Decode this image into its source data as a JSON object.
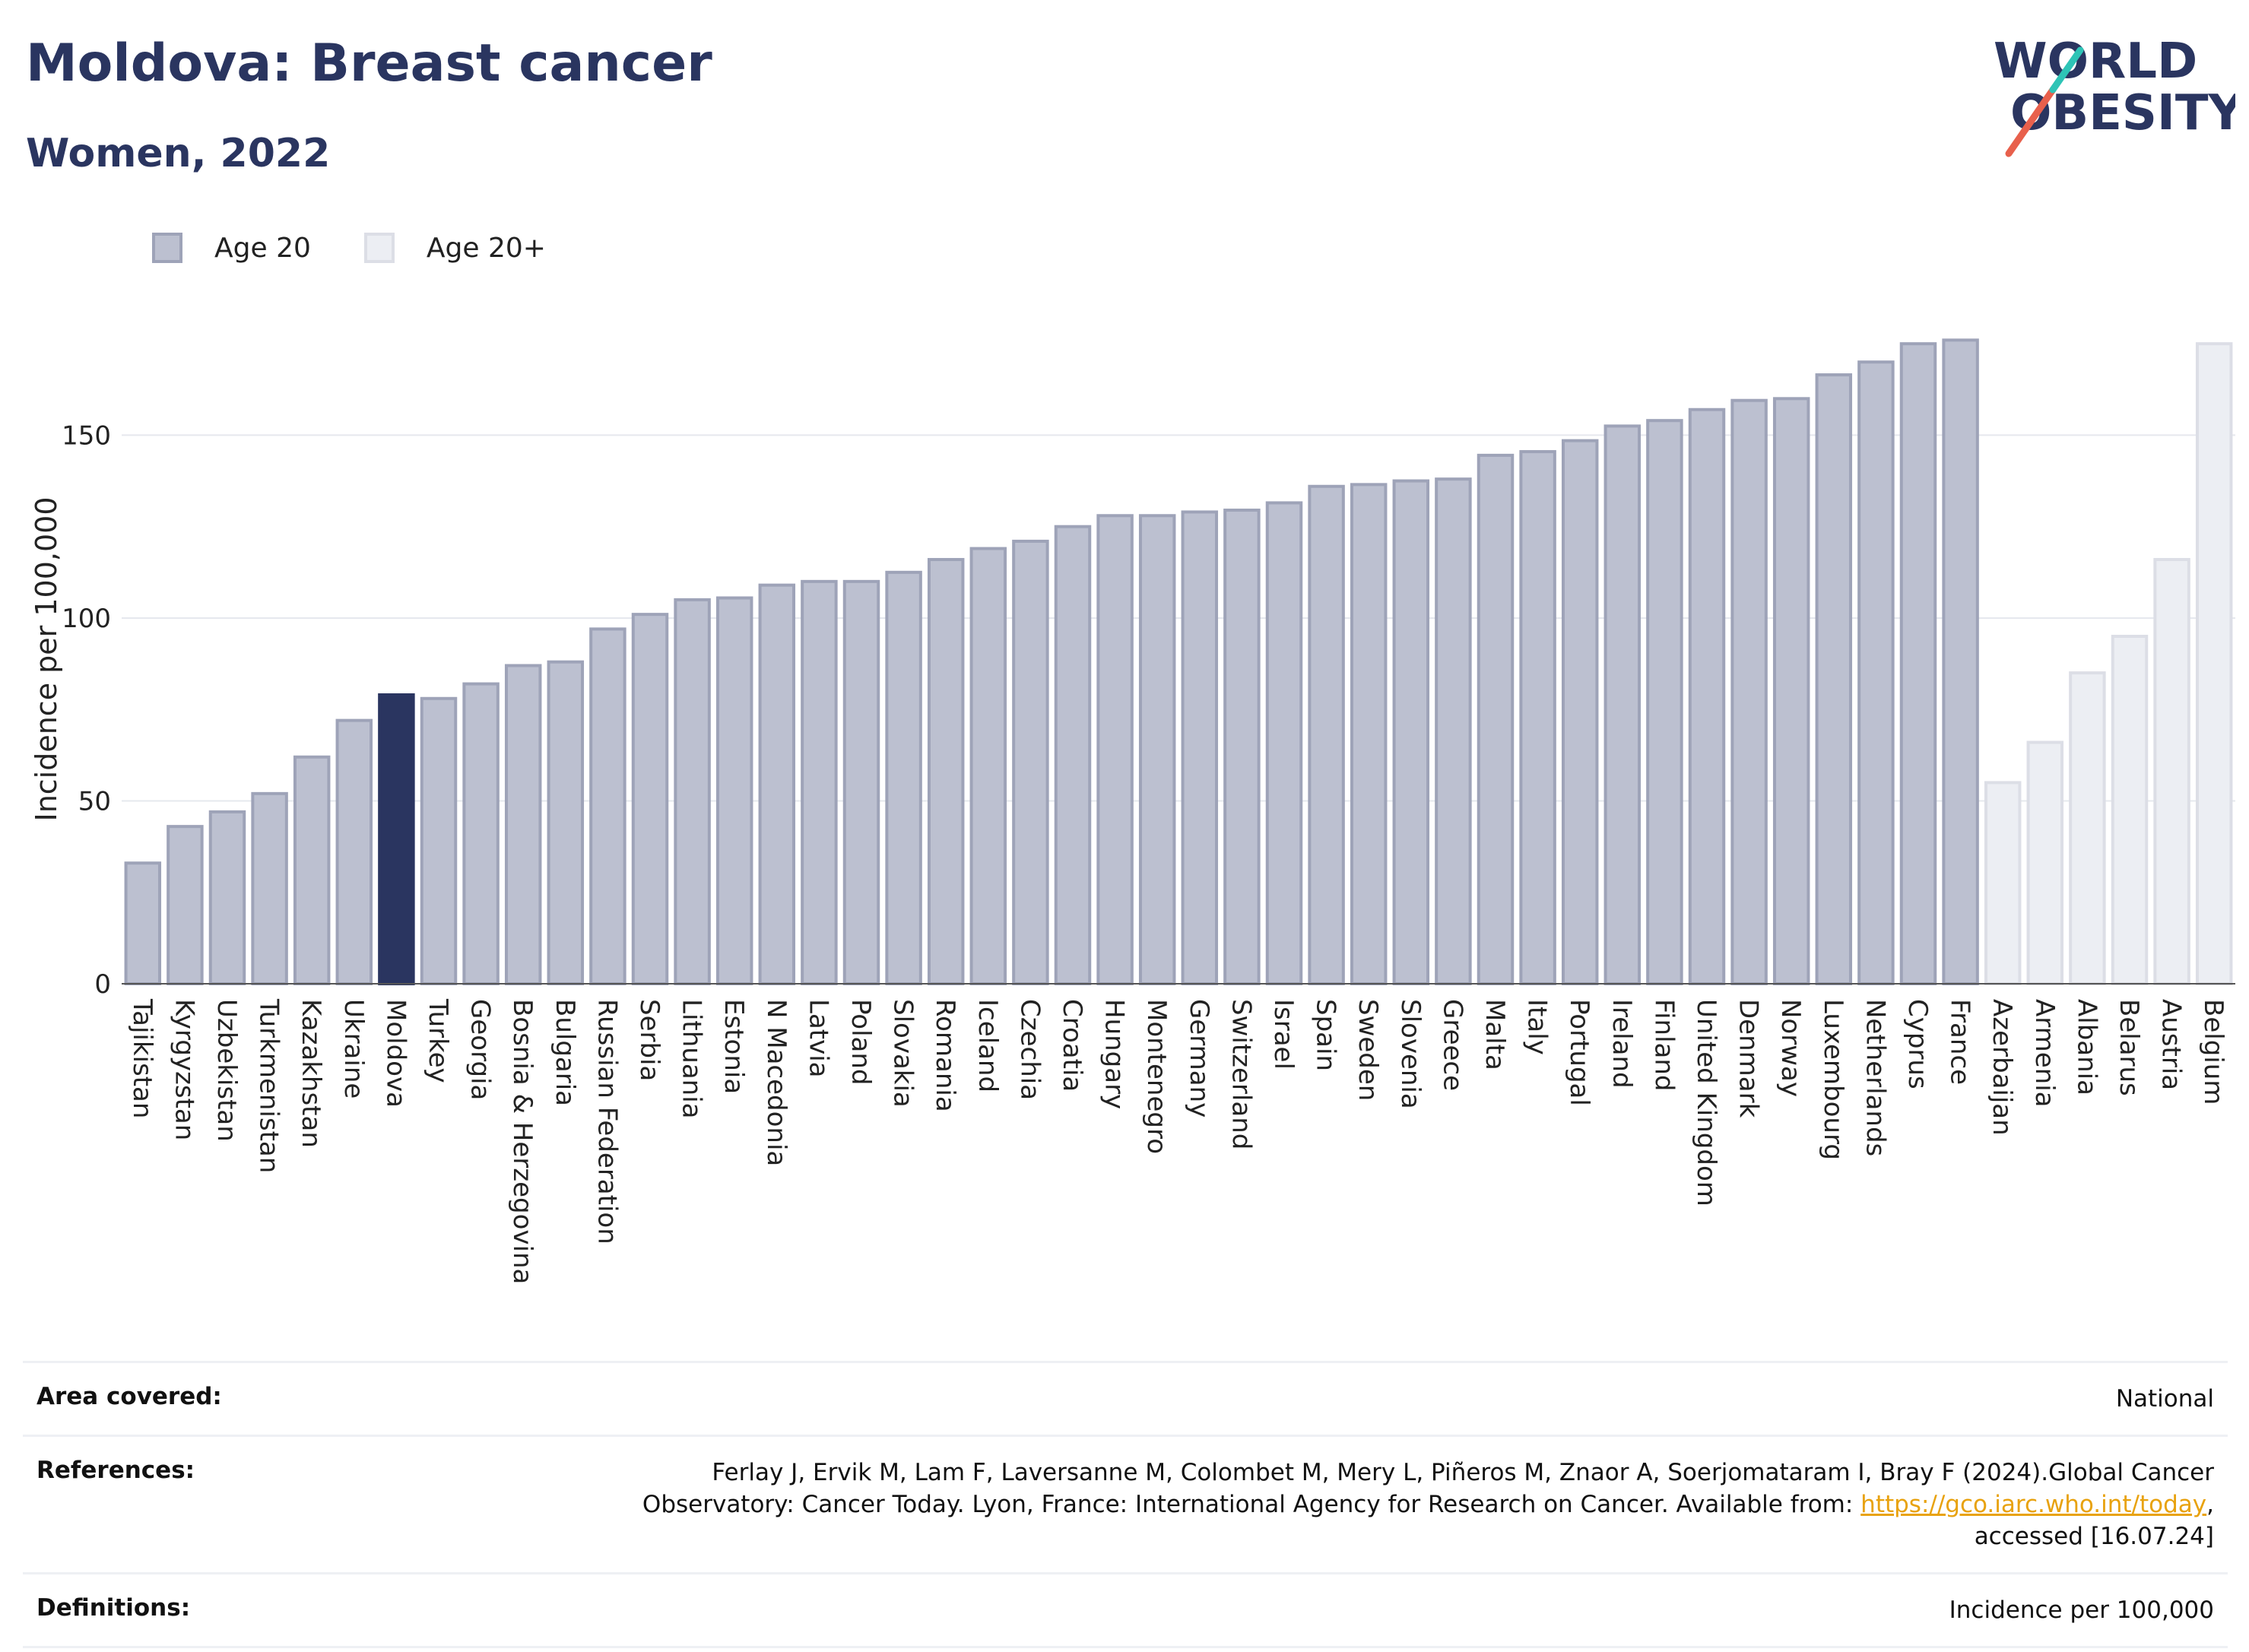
{
  "header": {
    "title": "Moldova: Breast cancer",
    "subtitle": "Women, 2022"
  },
  "logo": {
    "line1": "WORLD",
    "line2": "OBESITY",
    "colors": {
      "text": "#2a3560",
      "slash_red": "#e8604c",
      "slash_teal": "#2ec4b6"
    }
  },
  "legend": {
    "items": [
      {
        "label": "Age 20",
        "color": "#bcc0d0",
        "border": "#9ea3b8"
      },
      {
        "label": "Age 20+",
        "color": "#eceef3",
        "border": "#dcdee6"
      }
    ]
  },
  "chart_data": {
    "type": "bar",
    "ylabel": "Incidence per 100,000",
    "ylim": [
      0,
      190
    ],
    "yticks": [
      0,
      50,
      100,
      150
    ],
    "grid": true,
    "highlight": "Moldova",
    "colors": {
      "age20_fill": "#bcc0d0",
      "age20_border": "#9ea3b8",
      "age20plus_fill": "#eceef3",
      "age20plus_border": "#dcdee6",
      "highlight": "#2a3560"
    },
    "categories": [
      "Tajikistan",
      "Kyrgyzstan",
      "Uzbekistan",
      "Turkmenistan",
      "Kazakhstan",
      "Ukraine",
      "Moldova",
      "Turkey",
      "Georgia",
      "Bosnia & Herzegovina",
      "Bulgaria",
      "Russian Federation",
      "Serbia",
      "Lithuania",
      "Estonia",
      "N Macedonia",
      "Latvia",
      "Poland",
      "Slovakia",
      "Romania",
      "Iceland",
      "Czechia",
      "Croatia",
      "Hungary",
      "Montenegro",
      "Germany",
      "Switzerland",
      "Israel",
      "Spain",
      "Sweden",
      "Slovenia",
      "Greece",
      "Malta",
      "Italy",
      "Portugal",
      "Ireland",
      "Finland",
      "United Kingdom",
      "Denmark",
      "Norway",
      "Luxembourg",
      "Netherlands",
      "Cyprus",
      "France",
      "Azerbaijan",
      "Armenia",
      "Albania",
      "Belarus",
      "Austria",
      "Belgium"
    ],
    "values": [
      33,
      43,
      47,
      52,
      62,
      72,
      79,
      78,
      82,
      87,
      88,
      97,
      101,
      105,
      105.5,
      109,
      110,
      110,
      112.5,
      116,
      119,
      121,
      125,
      128,
      128,
      129,
      129.5,
      131.5,
      136,
      136.5,
      137.5,
      138,
      144.5,
      145.5,
      148.5,
      152.5,
      154,
      157,
      159.5,
      160,
      166.5,
      170,
      175,
      176,
      55,
      66,
      85,
      95,
      116,
      175
    ],
    "groups": [
      "Age 20",
      "Age 20",
      "Age 20",
      "Age 20",
      "Age 20",
      "Age 20",
      "Age 20",
      "Age 20",
      "Age 20",
      "Age 20",
      "Age 20",
      "Age 20",
      "Age 20",
      "Age 20",
      "Age 20",
      "Age 20",
      "Age 20",
      "Age 20",
      "Age 20",
      "Age 20",
      "Age 20",
      "Age 20",
      "Age 20",
      "Age 20",
      "Age 20",
      "Age 20",
      "Age 20",
      "Age 20",
      "Age 20",
      "Age 20",
      "Age 20",
      "Age 20",
      "Age 20",
      "Age 20",
      "Age 20",
      "Age 20",
      "Age 20",
      "Age 20",
      "Age 20",
      "Age 20",
      "Age 20",
      "Age 20",
      "Age 20",
      "Age 20",
      "Age 20+",
      "Age 20+",
      "Age 20+",
      "Age 20+",
      "Age 20+",
      "Age 20+"
    ]
  },
  "info": {
    "area_label": "Area covered:",
    "area_value": "National",
    "references_label": "References:",
    "references_line1": "Ferlay J, Ervik M, Lam F, Laversanne M, Colombet M, Mery L, Piñeros M, Znaor A, Soerjomataram I, Bray F (2024).Global Cancer",
    "references_line2_prefix": "Observatory: Cancer Today. Lyon, France: International Agency for Research on Cancer. Available from: ",
    "references_link": "https://gco.iarc.who.int/today",
    "references_line2_suffix": ",",
    "references_line3": "accessed [16.07.24]",
    "definitions_label": "Definitions:",
    "definitions_value": "Incidence per 100,000"
  }
}
